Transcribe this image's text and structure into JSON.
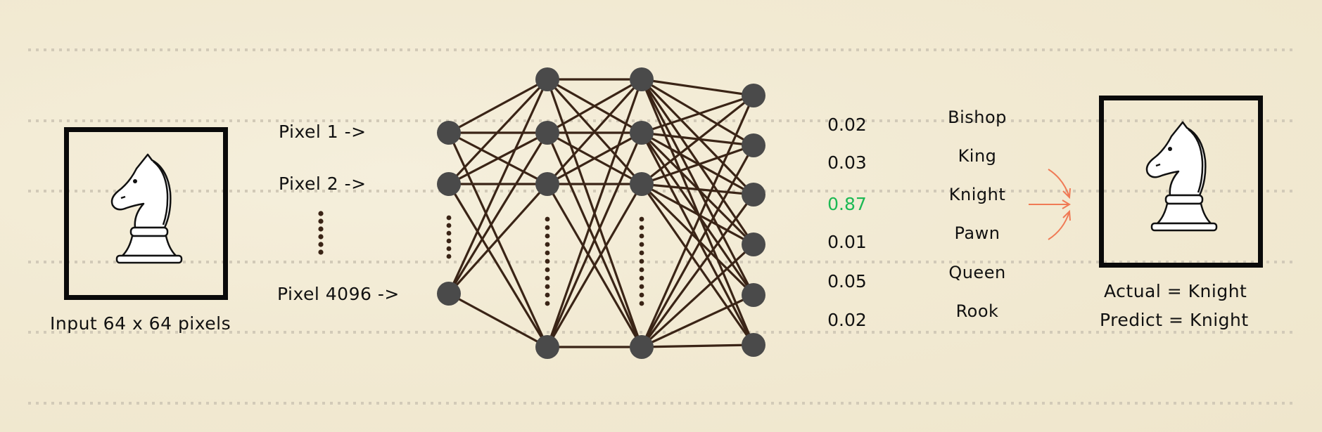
{
  "input": {
    "caption": "Input 64 x 64 pixels",
    "icon": "chess-knight-icon"
  },
  "pixels": [
    "Pixel 1 ->",
    "Pixel 2 ->",
    "Pixel 4096 ->"
  ],
  "probabilities": [
    "0.02",
    "0.03",
    "0.87",
    "0.01",
    "0.05",
    "0.02"
  ],
  "classes": [
    "Bishop",
    "King",
    "Knight",
    "Pawn",
    "Queen",
    "Rook"
  ],
  "result": {
    "actual": "Actual = Knight",
    "predict": "Predict = Knight",
    "icon": "chess-knight-icon"
  },
  "colors": {
    "highlight": "#1db954",
    "arrows": "#f07a55",
    "edges": "#3a2416",
    "nodes": "#4a4a4a"
  }
}
